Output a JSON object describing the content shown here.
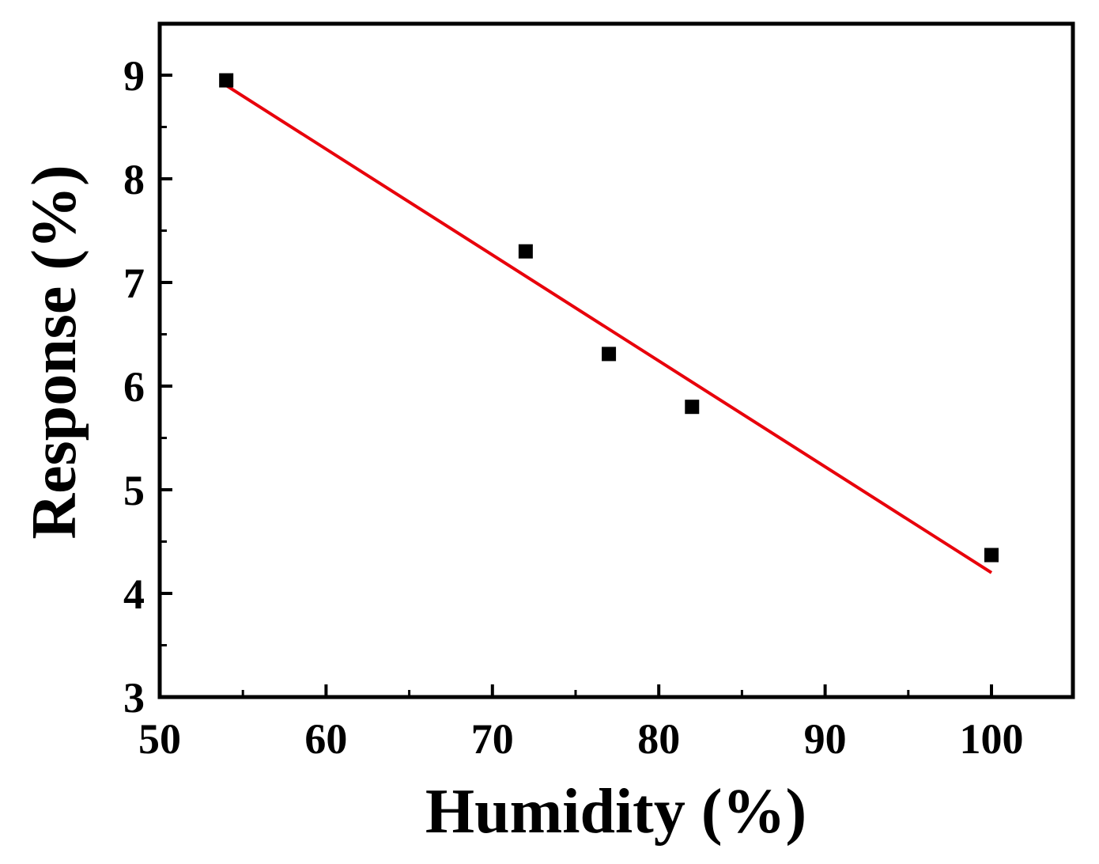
{
  "chart_data": {
    "type": "scatter",
    "xlabel": "Humidity (%)",
    "ylabel": "Response (%)",
    "xlim": [
      50,
      105
    ],
    "ylim": [
      3,
      9.5
    ],
    "x_ticks": [
      50,
      60,
      70,
      80,
      90,
      100
    ],
    "x_tick_labels": [
      "50",
      "60",
      "70",
      "80",
      "90",
      "100"
    ],
    "x_minor_ticks": [
      55,
      65,
      75,
      85,
      95
    ],
    "y_ticks": [
      3,
      4,
      5,
      6,
      7,
      8,
      9
    ],
    "y_tick_labels": [
      "3",
      "4",
      "5",
      "6",
      "7",
      "8",
      "9"
    ],
    "y_minor_ticks": [
      3.5,
      4.5,
      5.5,
      6.5,
      7.5,
      8.5
    ],
    "grid": false,
    "series": [
      {
        "marker": "square",
        "color": "#000000",
        "points": [
          {
            "x": 54,
            "y": 8.95
          },
          {
            "x": 72,
            "y": 7.3
          },
          {
            "x": 77,
            "y": 6.31
          },
          {
            "x": 82,
            "y": 5.8
          },
          {
            "x": 100,
            "y": 4.37
          }
        ]
      }
    ],
    "fit_line": {
      "type": "linear",
      "color": "#e8000b",
      "from": {
        "x": 54,
        "y": 8.9
      },
      "to": {
        "x": 100,
        "y": 4.2
      }
    }
  }
}
